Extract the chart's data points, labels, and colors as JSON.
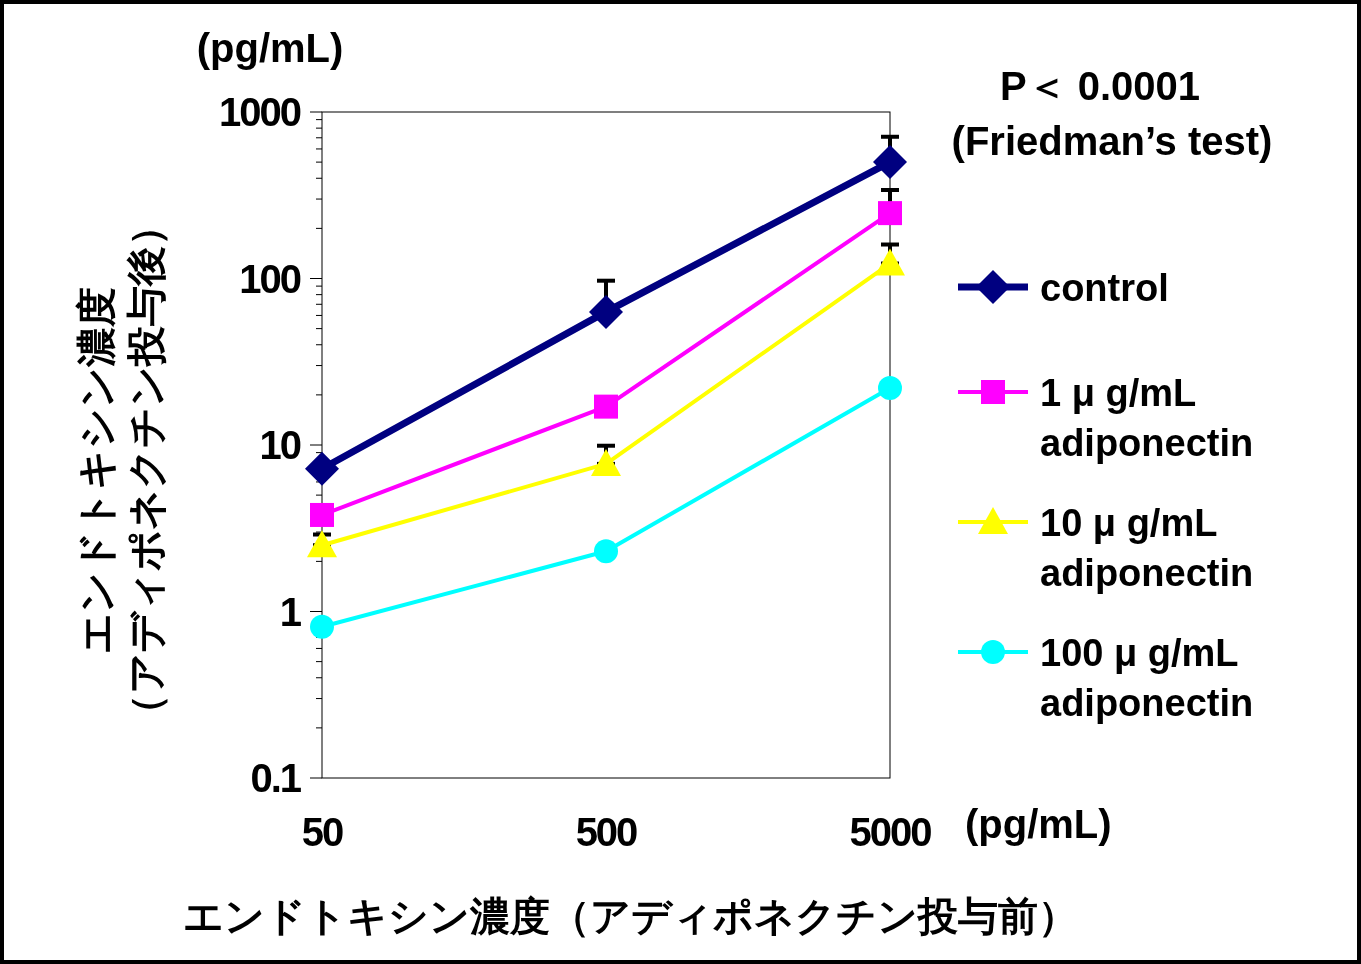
{
  "chart_data": {
    "type": "line",
    "xlabel": "エンドトキシン濃度（アディポネクチン投与前）",
    "ylabel": "エンドトキシン濃度（アディポネクチン投与後）",
    "annotations": [
      "(pg/mL)",
      "P＜ 0.0001",
      "(Friedman’s test)",
      "(pg/mL)"
    ],
    "x": [
      50,
      500,
      5000
    ],
    "log": "xy",
    "xlim": [
      50,
      5000
    ],
    "xticks": [
      50,
      500,
      5000
    ],
    "ylim": [
      0.1,
      1000
    ],
    "yticks": [
      0.1,
      1,
      10,
      100,
      1000
    ],
    "grid": false,
    "legend": "right",
    "series": [
      {
        "name": "control",
        "color": "#000080",
        "marker": "diamond",
        "values": [
          7.2,
          63,
          500
        ],
        "errors": [
          null,
          [
            63,
            97
          ],
          [
            500,
            710
          ]
        ]
      },
      {
        "name": "1 μ g/mL adiponectin",
        "color": "#ff00ff",
        "marker": "square",
        "values": [
          3.8,
          17,
          247
        ],
        "errors": [
          null,
          null,
          [
            247,
            340
          ]
        ]
      },
      {
        "name": "10 μ g/mL adiponectin",
        "color": "#ffff00",
        "marker": "triangle",
        "values": [
          2.5,
          7.7,
          123
        ],
        "errors": [
          [
            2.5,
            2.9
          ],
          [
            7.7,
            9.9
          ],
          [
            123,
            160
          ]
        ]
      },
      {
        "name": "100 μ g/mL adiponectin",
        "color": "#00ffff",
        "marker": "circle",
        "values": [
          0.81,
          2.3,
          22
        ]
      }
    ]
  }
}
